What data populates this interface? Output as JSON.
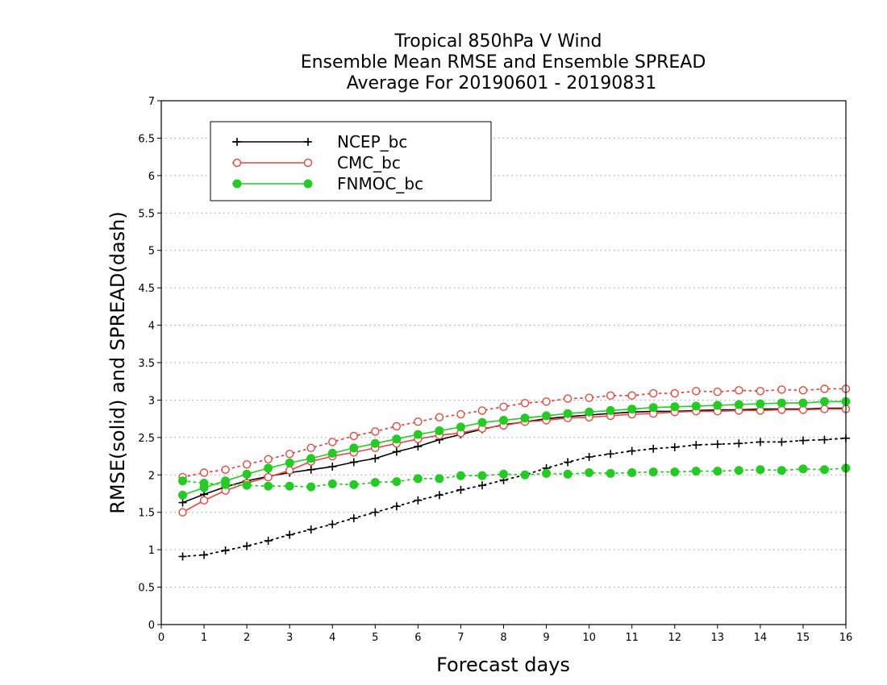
{
  "chart_data": {
    "type": "line",
    "title": [
      "Tropical 850hPa V Wind",
      "Ensemble Mean RMSE and Ensemble SPREAD",
      "Average For 20190601 - 20190831"
    ],
    "xlabel": "Forecast days",
    "ylabel": "RMSE(solid) and SPREAD(dash)",
    "xlim": [
      0,
      16
    ],
    "ylim": [
      0,
      7
    ],
    "xticks": [
      0,
      1,
      2,
      3,
      4,
      5,
      6,
      7,
      8,
      9,
      10,
      11,
      12,
      13,
      14,
      15,
      16
    ],
    "yticks": [
      0,
      0.5,
      1,
      1.5,
      2,
      2.5,
      3,
      3.5,
      4,
      4.5,
      5,
      5.5,
      6,
      6.5,
      7
    ],
    "ytick_labels": [
      "0",
      "0.5",
      "1",
      "1.5",
      "2",
      "2.5",
      "3",
      "3.5",
      "4",
      "4.5",
      "5",
      "5.5",
      "6",
      "6.5",
      "7"
    ],
    "grid": "horizontal dotted",
    "legend_position": "top-left",
    "x": [
      0.5,
      1,
      1.5,
      2,
      2.5,
      3,
      3.5,
      4,
      4.5,
      5,
      5.5,
      6,
      6.5,
      7,
      7.5,
      8,
      8.5,
      9,
      9.5,
      10,
      10.5,
      11,
      11.5,
      12,
      12.5,
      13,
      13.5,
      14,
      14.5,
      15,
      15.5,
      16
    ],
    "series": [
      {
        "name": "NCEP_bc",
        "color": "#000000",
        "marker": "plus",
        "rmse": [
          1.63,
          1.74,
          1.84,
          1.92,
          1.98,
          2.03,
          2.07,
          2.11,
          2.17,
          2.22,
          2.31,
          2.38,
          2.47,
          2.54,
          2.61,
          2.67,
          2.71,
          2.75,
          2.78,
          2.8,
          2.82,
          2.84,
          2.85,
          2.85,
          2.86,
          2.87,
          2.87,
          2.88,
          2.88,
          2.88,
          2.89,
          2.89
        ],
        "spread": [
          0.91,
          0.93,
          0.99,
          1.05,
          1.12,
          1.2,
          1.27,
          1.34,
          1.42,
          1.5,
          1.58,
          1.66,
          1.73,
          1.8,
          1.86,
          1.93,
          2.0,
          2.09,
          2.17,
          2.24,
          2.28,
          2.32,
          2.35,
          2.37,
          2.4,
          2.41,
          2.42,
          2.44,
          2.44,
          2.46,
          2.47,
          2.49
        ]
      },
      {
        "name": "CMC_bc",
        "color": "#e8473e",
        "marker": "open-circle",
        "rmse": [
          1.5,
          1.66,
          1.79,
          1.89,
          1.97,
          2.06,
          2.18,
          2.25,
          2.3,
          2.36,
          2.42,
          2.48,
          2.53,
          2.56,
          2.62,
          2.66,
          2.71,
          2.73,
          2.76,
          2.77,
          2.79,
          2.81,
          2.82,
          2.84,
          2.85,
          2.85,
          2.86,
          2.86,
          2.87,
          2.87,
          2.88,
          2.88
        ],
        "spread": [
          1.97,
          2.03,
          2.07,
          2.14,
          2.21,
          2.28,
          2.36,
          2.44,
          2.52,
          2.58,
          2.65,
          2.71,
          2.77,
          2.81,
          2.86,
          2.91,
          2.96,
          2.98,
          3.02,
          3.03,
          3.06,
          3.06,
          3.09,
          3.09,
          3.12,
          3.11,
          3.13,
          3.12,
          3.14,
          3.13,
          3.15,
          3.15
        ]
      },
      {
        "name": "FNMOC_bc",
        "color": "#22cc22",
        "marker": "filled-circle",
        "rmse": [
          1.73,
          1.83,
          1.92,
          2.01,
          2.09,
          2.16,
          2.22,
          2.29,
          2.36,
          2.42,
          2.48,
          2.54,
          2.59,
          2.64,
          2.7,
          2.73,
          2.76,
          2.79,
          2.82,
          2.84,
          2.86,
          2.88,
          2.9,
          2.91,
          2.92,
          2.93,
          2.94,
          2.95,
          2.96,
          2.96,
          2.98,
          2.98
        ],
        "spread": [
          1.92,
          1.89,
          1.87,
          1.86,
          1.85,
          1.85,
          1.84,
          1.88,
          1.87,
          1.9,
          1.91,
          1.95,
          1.95,
          1.99,
          1.99,
          2.01,
          2.0,
          2.02,
          2.01,
          2.03,
          2.02,
          2.03,
          2.04,
          2.04,
          2.05,
          2.05,
          2.06,
          2.07,
          2.06,
          2.08,
          2.07,
          2.09
        ]
      }
    ]
  }
}
